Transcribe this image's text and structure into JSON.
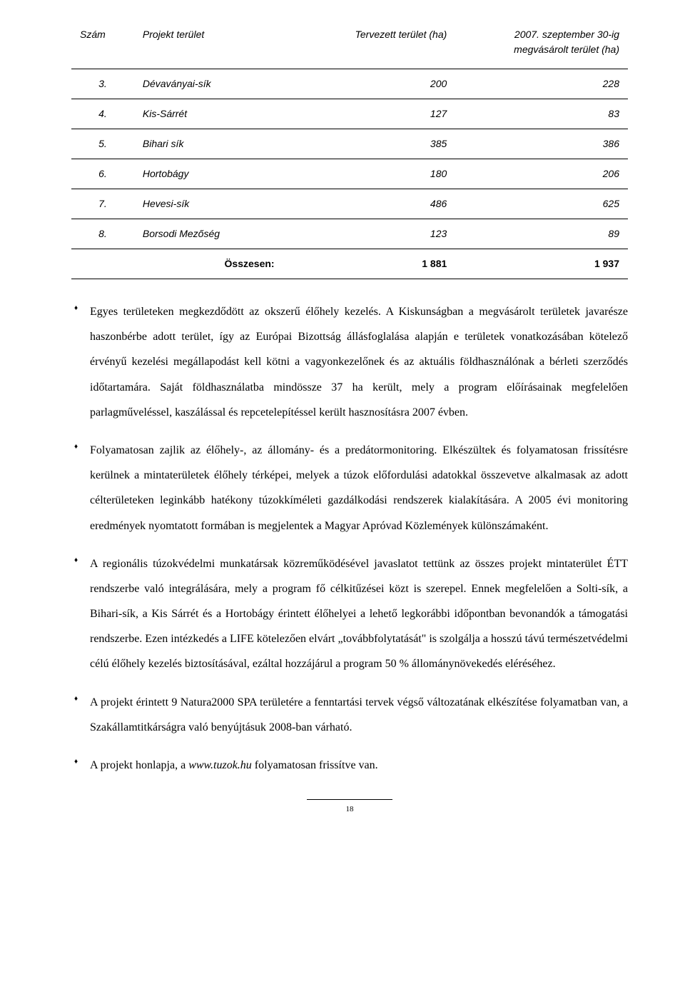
{
  "table": {
    "headers": [
      "Szám",
      "Projekt terület",
      "Tervezett terület (ha)",
      "2007. szeptember 30-ig megvásárolt terület (ha)"
    ],
    "rows": [
      [
        "3.",
        "Dévaványai-sík",
        "200",
        "228"
      ],
      [
        "4.",
        "Kis-Sárrét",
        "127",
        "83"
      ],
      [
        "5.",
        "Bihari sík",
        "385",
        "386"
      ],
      [
        "6.",
        "Hortobágy",
        "180",
        "206"
      ],
      [
        "7.",
        "Hevesi-sík",
        "486",
        "625"
      ],
      [
        "8.",
        "Borsodi Mezőség",
        "123",
        "89"
      ]
    ],
    "total": [
      "",
      "Összesen:",
      "1 881",
      "1 937"
    ]
  },
  "bullets": [
    "Egyes területeken megkezdődött az okszerű élőhely kezelés. A Kiskunságban a megvásárolt területek javarésze haszonbérbe adott terület, így az Európai Bizottság állásfoglalása alapján e területek vonatkozásában kötelező érvényű kezelési megállapodást kell kötni a vagyonkezelőnek és az aktuális földhasználónak a bérleti szerződés időtartamára. Saját földhasználatba mindössze 37 ha került, mely a program előírásainak megfelelően parlagműveléssel, kaszálással és repcetelepítéssel került hasznosításra 2007 évben.",
    "Folyamatosan zajlik az élőhely-, az állomány- és a predátormonitoring. Elkészültek és folyamatosan frissítésre kerülnek a mintaterületek élőhely térképei, melyek a túzok előfordulási adatokkal összevetve alkalmasak az adott célterületeken leginkább hatékony túzokkíméleti gazdálkodási rendszerek kialakítására. A 2005 évi monitoring eredmények nyomtatott formában is megjelentek a Magyar Apróvad Közlemények különszámaként.",
    "A regionális túzokvédelmi munkatársak közreműködésével javaslatot tettünk az összes projekt mintaterület ÉTT rendszerbe való integrálására, mely a program fő célkitűzései közt is szerepel. Ennek megfelelően a Solti-sík, a Bihari-sík, a Kis Sárrét és a Hortobágy érintett élőhelyei a lehető legkorábbi időpontban bevonandók a támogatási rendszerbe. Ezen intézkedés a LIFE kötelezően elvárt „továbbfolytatását\" is szolgálja a hosszú távú természetvédelmi célú élőhely kezelés biztosításával, ezáltal hozzájárul a program 50 % állománynövekedés eléréséhez.",
    "A projekt érintett 9 Natura2000 SPA területére a fenntartási tervek végső változatának elkészítése folyamatban van, a Szakállamtitkárságra való benyújtásuk 2008-ban várható."
  ],
  "lastBullet": {
    "prefix": "A projekt honlapja, a ",
    "url": "www.tuzok.hu",
    "suffix": " folyamatosan frissítve van."
  },
  "pageNumber": "18"
}
